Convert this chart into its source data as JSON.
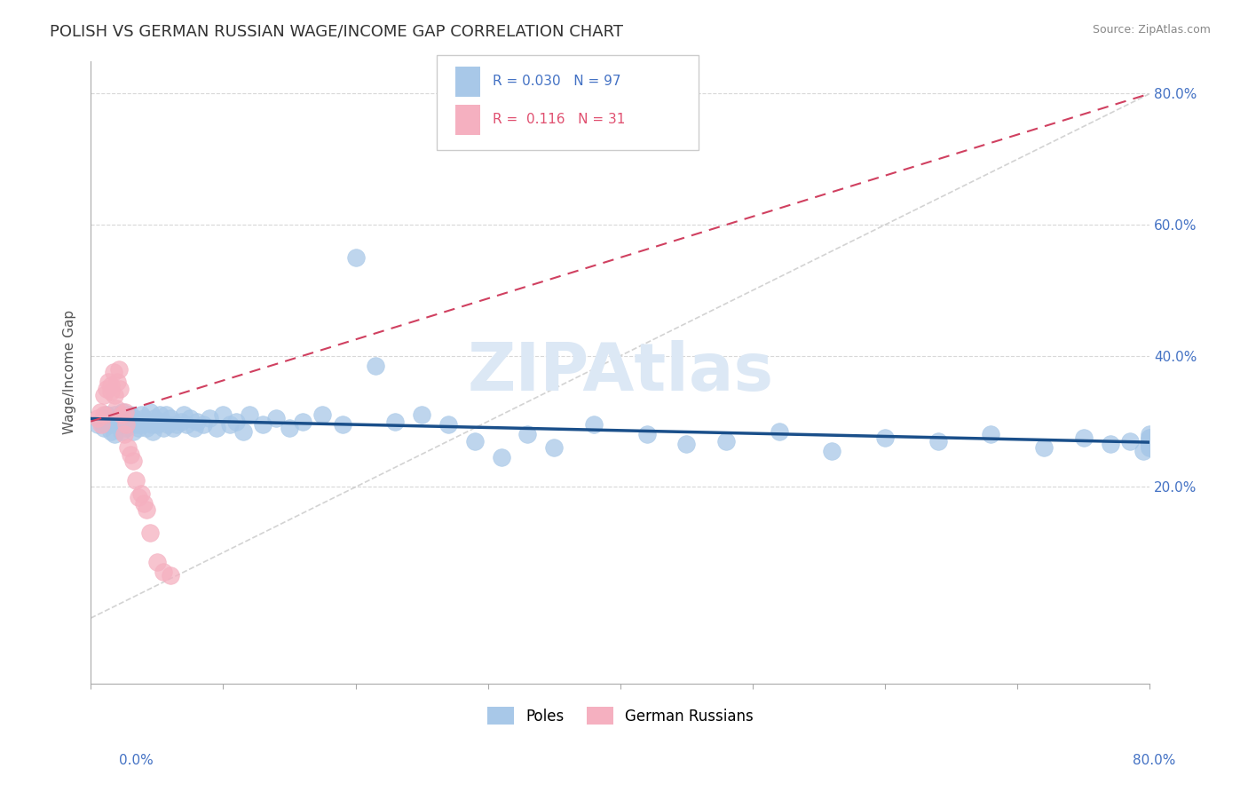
{
  "title": "POLISH VS GERMAN RUSSIAN WAGE/INCOME GAP CORRELATION CHART",
  "source": "Source: ZipAtlas.com",
  "ylabel": "Wage/Income Gap",
  "xmin": 0.0,
  "xmax": 0.8,
  "ymin": -0.1,
  "ymax": 0.85,
  "poles_R": 0.03,
  "poles_N": 97,
  "german_russian_R": 0.116,
  "german_russian_N": 31,
  "poles_color": "#a8c8e8",
  "poles_trend_color": "#1a4f8a",
  "german_russian_color": "#f5b0c0",
  "german_russian_trend_color": "#d04060",
  "diagonal_color": "#c8c8c8",
  "grid_color": "#d8d8d8",
  "background_color": "#ffffff",
  "title_color": "#333333",
  "title_fontsize": 13,
  "axis_label_color": "#4472c4",
  "watermark_color": "#dce8f5",
  "poles_x": [
    0.005,
    0.008,
    0.01,
    0.01,
    0.012,
    0.013,
    0.015,
    0.015,
    0.017,
    0.018,
    0.018,
    0.02,
    0.02,
    0.022,
    0.023,
    0.024,
    0.025,
    0.026,
    0.027,
    0.028,
    0.03,
    0.031,
    0.032,
    0.033,
    0.034,
    0.035,
    0.036,
    0.038,
    0.039,
    0.04,
    0.042,
    0.043,
    0.045,
    0.046,
    0.047,
    0.048,
    0.05,
    0.052,
    0.053,
    0.055,
    0.057,
    0.058,
    0.06,
    0.062,
    0.065,
    0.068,
    0.07,
    0.072,
    0.075,
    0.078,
    0.08,
    0.085,
    0.09,
    0.095,
    0.1,
    0.105,
    0.11,
    0.115,
    0.12,
    0.13,
    0.14,
    0.15,
    0.16,
    0.175,
    0.19,
    0.2,
    0.215,
    0.23,
    0.25,
    0.27,
    0.29,
    0.31,
    0.33,
    0.35,
    0.38,
    0.42,
    0.45,
    0.48,
    0.52,
    0.56,
    0.6,
    0.64,
    0.68,
    0.72,
    0.75,
    0.77,
    0.785,
    0.795,
    0.8,
    0.8,
    0.8,
    0.8,
    0.8,
    0.8,
    0.8,
    0.8,
    0.8
  ],
  "poles_y": [
    0.295,
    0.3,
    0.305,
    0.29,
    0.31,
    0.295,
    0.285,
    0.3,
    0.295,
    0.31,
    0.28,
    0.305,
    0.295,
    0.3,
    0.285,
    0.315,
    0.295,
    0.305,
    0.29,
    0.3,
    0.31,
    0.295,
    0.285,
    0.305,
    0.295,
    0.3,
    0.29,
    0.31,
    0.295,
    0.305,
    0.29,
    0.3,
    0.315,
    0.295,
    0.285,
    0.305,
    0.295,
    0.31,
    0.3,
    0.29,
    0.31,
    0.295,
    0.305,
    0.29,
    0.295,
    0.3,
    0.31,
    0.295,
    0.305,
    0.29,
    0.3,
    0.295,
    0.305,
    0.29,
    0.31,
    0.295,
    0.3,
    0.285,
    0.31,
    0.295,
    0.305,
    0.29,
    0.3,
    0.31,
    0.295,
    0.55,
    0.385,
    0.3,
    0.31,
    0.295,
    0.27,
    0.245,
    0.28,
    0.26,
    0.295,
    0.28,
    0.265,
    0.27,
    0.285,
    0.255,
    0.275,
    0.27,
    0.28,
    0.26,
    0.275,
    0.265,
    0.27,
    0.255,
    0.275,
    0.28,
    0.26,
    0.265,
    0.275,
    0.26,
    0.27,
    0.265,
    0.27
  ],
  "german_x": [
    0.005,
    0.007,
    0.008,
    0.01,
    0.01,
    0.012,
    0.013,
    0.015,
    0.015,
    0.017,
    0.018,
    0.019,
    0.02,
    0.021,
    0.022,
    0.023,
    0.025,
    0.026,
    0.027,
    0.028,
    0.03,
    0.032,
    0.034,
    0.036,
    0.038,
    0.04,
    0.042,
    0.045,
    0.05,
    0.055,
    0.06
  ],
  "german_y": [
    0.305,
    0.315,
    0.295,
    0.34,
    0.31,
    0.35,
    0.36,
    0.345,
    0.355,
    0.375,
    0.34,
    0.32,
    0.36,
    0.38,
    0.35,
    0.31,
    0.28,
    0.315,
    0.295,
    0.26,
    0.25,
    0.24,
    0.21,
    0.185,
    0.19,
    0.175,
    0.165,
    0.13,
    0.085,
    0.07,
    0.065
  ]
}
